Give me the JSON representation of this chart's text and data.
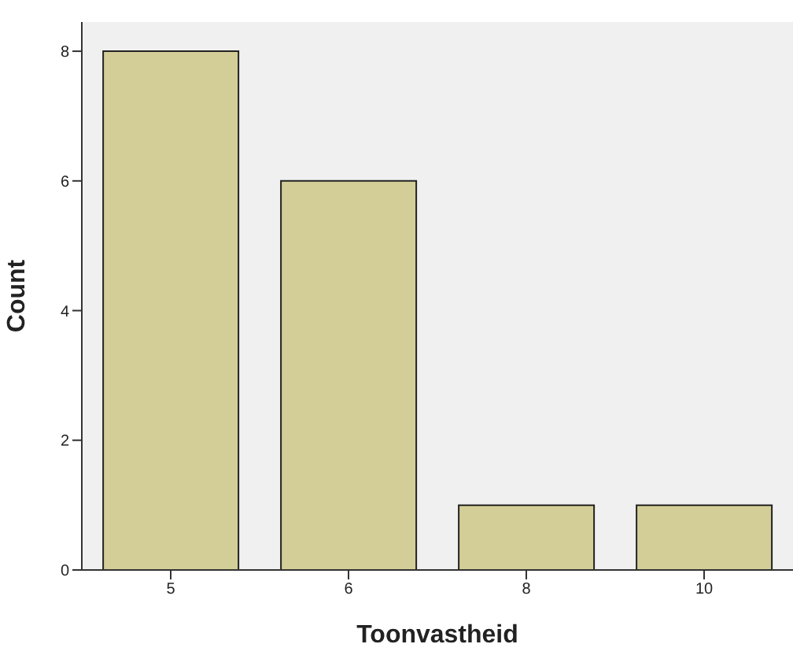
{
  "chart_data": {
    "type": "bar",
    "categories": [
      "5",
      "6",
      "8",
      "10"
    ],
    "values": [
      8,
      6,
      1,
      1
    ],
    "color": "#d3ce97",
    "xlabel": "Toonvastheid",
    "ylabel": "Count",
    "ylim": [
      0,
      8.45
    ],
    "yticks": [
      0,
      2,
      4,
      6,
      8
    ]
  }
}
